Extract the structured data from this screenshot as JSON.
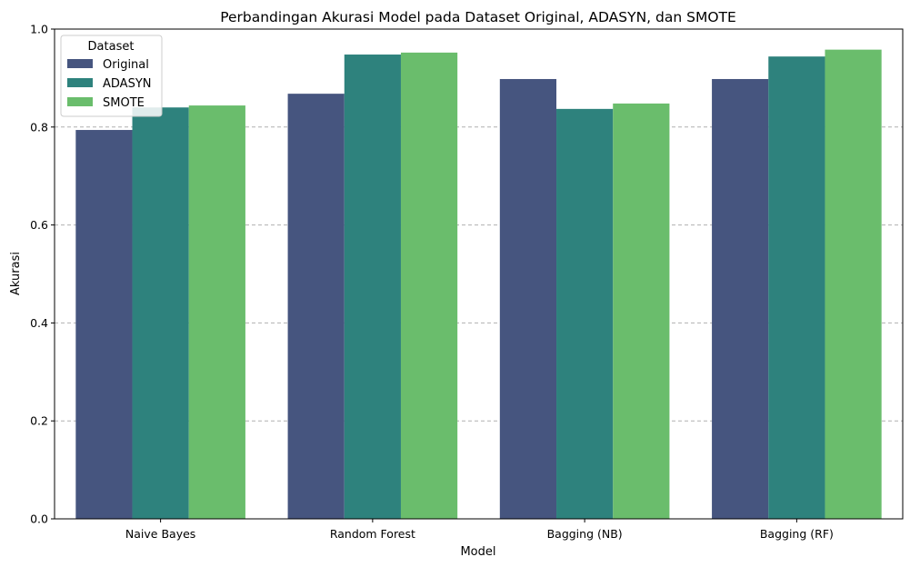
{
  "chart_data": {
    "type": "bar",
    "title": "Perbandingan Akurasi Model pada Dataset Original, ADASYN, dan SMOTE",
    "xlabel": "Model",
    "ylabel": "Akurasi",
    "ylim": [
      0,
      1.0
    ],
    "yticks": [
      0.0,
      0.2,
      0.4,
      0.6,
      0.8,
      1.0
    ],
    "ytick_labels": [
      "0.0",
      "0.2",
      "0.4",
      "0.6",
      "0.8",
      "1.0"
    ],
    "grid": "y-dashed",
    "legend_placement": "top-left",
    "legend_title": "Dataset",
    "categories": [
      "Naive Bayes",
      "Random Forest",
      "Bagging (NB)",
      "Bagging (RF)"
    ],
    "series": [
      {
        "name": "Original",
        "color": "#46557f",
        "values": [
          0.794,
          0.868,
          0.898,
          0.898
        ]
      },
      {
        "name": "ADASYN",
        "color": "#2e827d",
        "values": [
          0.84,
          0.948,
          0.837,
          0.944
        ]
      },
      {
        "name": "SMOTE",
        "color": "#6abd6c",
        "values": [
          0.844,
          0.952,
          0.848,
          0.958
        ]
      }
    ]
  }
}
